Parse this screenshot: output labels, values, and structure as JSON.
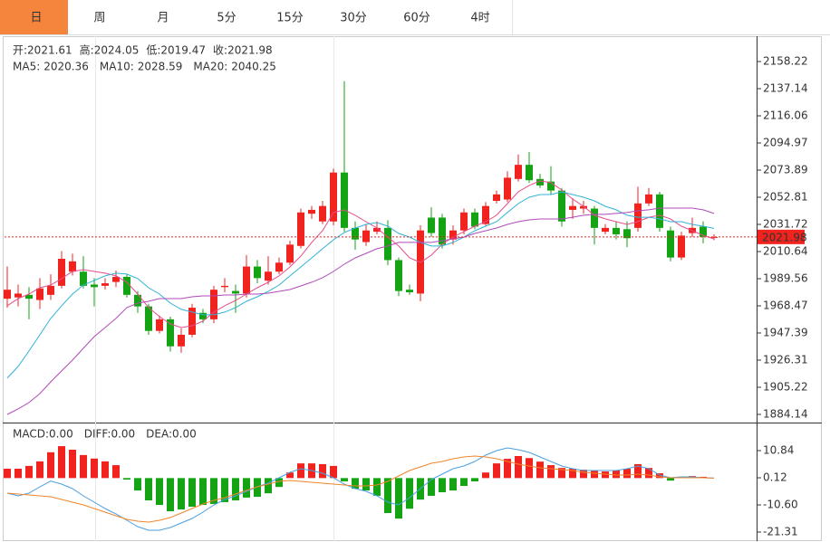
{
  "tabs": {
    "items": [
      "日",
      "周",
      "月",
      "5分",
      "15分",
      "30分",
      "60分",
      "4时"
    ],
    "active": 0
  },
  "chart_data": [
    {
      "type": "candlestick",
      "ohlc_legend": [
        {
          "label": "开:",
          "value": 2021.61
        },
        {
          "label": "高:",
          "value": 2024.05
        },
        {
          "label": "低:",
          "value": 2019.47
        },
        {
          "label": "收:",
          "value": 2021.98
        }
      ],
      "up_color": "#f0231f",
      "down_color": "#13a313",
      "open": [
        1974,
        1975,
        1977,
        1973,
        1977,
        1984,
        1995,
        1995,
        1985,
        1984,
        1987,
        1991,
        1977,
        1968,
        1949,
        1958,
        1937,
        1946,
        1963,
        1958,
        1983,
        1980,
        1978,
        1999,
        1988,
        1995,
        2002,
        2015,
        2040,
        2034,
        2034,
        2072,
        2029,
        2018,
        2026,
        2029,
        2004,
        1981,
        1978,
        2037,
        2037,
        2020,
        2027,
        2041,
        2032,
        2050,
        2051,
        2067,
        2078,
        2067,
        2065,
        2058,
        2043,
        2044,
        2044,
        2026,
        2029,
        2028,
        2029,
        2048,
        2055,
        2027,
        2006,
        2025,
        2030,
        2021.61
      ],
      "high": [
        1999,
        1985,
        1983,
        1990,
        1993,
        2011,
        2009,
        2007,
        1990,
        1990,
        1996,
        1993,
        1980,
        1970,
        1961,
        1960,
        1951,
        1970,
        1966,
        1984,
        1990,
        1985,
        2008,
        2004,
        2007,
        2006,
        2019,
        2044,
        2046,
        2050,
        2075,
        2143,
        2034,
        2032,
        2034,
        2035,
        2006,
        1985,
        2031,
        2045,
        2040,
        2031,
        2044,
        2044,
        2049,
        2058,
        2073,
        2086,
        2088,
        2071,
        2077,
        2060,
        2052,
        2050,
        2046,
        2032,
        2034,
        2034,
        2061,
        2060,
        2057,
        2030,
        2026,
        2037,
        2034,
        2024.05
      ],
      "low": [
        1967,
        1968,
        1958,
        1966,
        1973,
        1982,
        1992,
        1982,
        1968,
        1981,
        1983,
        1975,
        1963,
        1946,
        1947,
        1933,
        1932,
        1944,
        1955,
        1955,
        1979,
        1963,
        1975,
        1986,
        1985,
        1993,
        2000,
        2013,
        2036,
        2032,
        2031,
        2026,
        2012,
        2015,
        2024,
        2000,
        1976,
        1977,
        1972,
        2022,
        2013,
        2016,
        2024,
        2028,
        2030,
        2048,
        2049,
        2065,
        2064,
        2060,
        2055,
        2030,
        2036,
        2040,
        2016,
        2024,
        2020,
        2014,
        2026,
        2046,
        2026,
        2003,
        2004,
        2022,
        2017,
        2019.47
      ],
      "close": [
        1981,
        1978,
        1974,
        1982,
        1984,
        2005,
        2003,
        1984,
        1983,
        1986,
        1991,
        1977,
        1968,
        1949,
        1958,
        1937,
        1946,
        1967,
        1958,
        1981,
        1984,
        1978,
        1999,
        1990,
        1995,
        2002,
        2016,
        2041,
        2043,
        2046,
        2072,
        2029,
        2020,
        2027,
        2029,
        2004,
        1980,
        1979,
        2027,
        2025,
        2016,
        2027,
        2041,
        2030,
        2046,
        2055,
        2068,
        2078,
        2066,
        2062,
        2058,
        2034,
        2046,
        2046,
        2029,
        2029,
        2024,
        2021,
        2048,
        2055,
        2029,
        2006,
        2023,
        2029,
        2022,
        2021.98
      ],
      "series": [
        {
          "name": "MA5:",
          "current": 2020.36,
          "color": "#e64c8c",
          "values": [
            1968.5,
            1974.1,
            1977.6,
            1982.5,
            1984.6,
            1989.6,
            1995.2,
            1996.6,
            1995.2,
            1993.8,
            1991.7,
            1986.8,
            1977.6,
            1967.1,
            1960.1,
            1954.4,
            1951.6,
            1953.0,
            1956.5,
            1963.6,
            1968.5,
            1972.7,
            1977.6,
            1982.5,
            1986.8,
            1991.7,
            1998.7,
            2007.1,
            2017.7,
            2026.8,
            2040.9,
            2043.0,
            2038.8,
            2033.8,
            2028.9,
            2021.9,
            2014.9,
            2005.7,
            2002.2,
            2007.8,
            2016.3,
            2021.9,
            2026.1,
            2030.3,
            2033.8,
            2038.8,
            2047.9,
            2057.0,
            2062.0,
            2065.5,
            2064.1,
            2058.4,
            2051.4,
            2045.8,
            2038.8,
            2036.0,
            2033.8,
            2031.7,
            2033.8,
            2037.3,
            2038.8,
            2036.0,
            2030.3,
            2026.8,
            2023.3,
            2020.36
          ]
        },
        {
          "name": "MA10:",
          "current": 2028.59,
          "color": "#2fb3d6",
          "values": [
            1912.3,
            1921.4,
            1933.4,
            1946.0,
            1958.7,
            1968.5,
            1977.6,
            1984.6,
            1988.2,
            1991.7,
            1993.8,
            1993.1,
            1989.6,
            1982.5,
            1977.6,
            1970.6,
            1965.7,
            1963.6,
            1961.5,
            1961.5,
            1963.6,
            1967.1,
            1972.0,
            1975.5,
            1979.7,
            1984.6,
            1991.7,
            1998.7,
            2005.7,
            2012.8,
            2019.8,
            2025.4,
            2028.9,
            2031.7,
            2033.1,
            2030.3,
            2024.7,
            2021.9,
            2017.7,
            2014.9,
            2014.9,
            2017.7,
            2021.9,
            2026.8,
            2030.3,
            2033.8,
            2040.9,
            2047.9,
            2052.8,
            2054.9,
            2054.9,
            2057.0,
            2054.9,
            2052.8,
            2050.0,
            2045.8,
            2043.0,
            2038.8,
            2037.3,
            2037.3,
            2036.0,
            2033.8,
            2033.8,
            2031.7,
            2030.3,
            2028.59
          ]
        },
        {
          "name": "MA20:",
          "current": 2040.25,
          "color": "#b04ab8",
          "values": [
            1884.1,
            1888.4,
            1893.3,
            1900.3,
            1909.4,
            1917.9,
            1926.3,
            1935.5,
            1944.6,
            1951.6,
            1958.7,
            1967.1,
            1970.6,
            1972.0,
            1974.1,
            1974.1,
            1974.1,
            1975.5,
            1976.2,
            1976.2,
            1976.9,
            1976.9,
            1977.6,
            1977.6,
            1978.3,
            1979.7,
            1981.1,
            1983.9,
            1986.8,
            1990.3,
            1995.2,
            2000.8,
            2005.7,
            2009.2,
            2012.8,
            2014.9,
            2017.7,
            2017.7,
            2017.7,
            2017.7,
            2019.1,
            2020.5,
            2021.9,
            2024.7,
            2026.8,
            2028.9,
            2031.7,
            2033.8,
            2035.2,
            2035.9,
            2035.9,
            2035.9,
            2037.3,
            2038.8,
            2039.5,
            2039.5,
            2040.2,
            2040.9,
            2042.3,
            2043.0,
            2044.4,
            2044.4,
            2044.4,
            2044.4,
            2043.0,
            2040.25
          ]
        }
      ],
      "last_price": 2021.98,
      "last_price_color": "#f0231f",
      "ylim": [
        1877.8,
        2177.9
      ],
      "yticks": [
        1884.14,
        1905.22,
        1926.31,
        1947.39,
        1968.47,
        1989.56,
        2010.64,
        2031.72,
        2052.81,
        2073.89,
        2094.97,
        2116.06,
        2137.14,
        2158.22
      ]
    },
    {
      "type": "macd",
      "histogram": {
        "name": "MACD:",
        "current": {
          "value": 0,
          "label": "0.00"
        },
        "up_color": "#f0231f",
        "down_color": "#13a313",
        "values": [
          3.7,
          3.7,
          4.8,
          6.6,
          10.2,
          12.6,
          11.2,
          9.1,
          7.7,
          6.6,
          5.1,
          -0.6,
          -4.9,
          -8.8,
          -10.6,
          -13.1,
          -12.4,
          -11.3,
          -10.6,
          -10.2,
          -9.5,
          -8.8,
          -7.7,
          -7.4,
          -6.0,
          -3.5,
          2.2,
          5.8,
          5.8,
          5.5,
          4.8,
          -1.3,
          -4.2,
          -4.9,
          -7.0,
          -13.8,
          -16.0,
          -12.1,
          -8.5,
          -7.0,
          -5.6,
          -4.9,
          -3.1,
          -1.3,
          2.2,
          5.8,
          7.6,
          8.7,
          7.9,
          6.5,
          5.1,
          4.0,
          3.7,
          3.3,
          3.0,
          2.6,
          3.0,
          3.7,
          5.5,
          4.0,
          1.9,
          -1.0,
          0.5,
          0.8,
          0.5,
          0
        ]
      },
      "series": [
        {
          "name": "DIFF:",
          "current": {
            "value": 0,
            "label": "0.00"
          },
          "color": "#4a9fe0",
          "values": [
            -5.95,
            -7.03,
            -5.95,
            -3.45,
            -1.2,
            -2.38,
            -4.17,
            -7.03,
            -9.53,
            -12.03,
            -14.17,
            -16.67,
            -19.17,
            -20.6,
            -20.6,
            -19.53,
            -17.75,
            -15.96,
            -13.46,
            -10.6,
            -8.46,
            -7.03,
            -5.24,
            -3.45,
            -2.02,
            0.12,
            2.26,
            3.69,
            2.98,
            1.91,
            0.12,
            -2.38,
            -4.17,
            -5.24,
            -7.03,
            -9.53,
            -10.6,
            -7.74,
            -4.17,
            -0.59,
            1.55,
            3.69,
            4.76,
            6.55,
            9.05,
            10.84,
            11.91,
            11.2,
            10.12,
            8.34,
            6.55,
            4.76,
            3.69,
            2.98,
            2.98,
            2.98,
            2.98,
            3.69,
            4.76,
            3.69,
            1.19,
            0.12,
            0.48,
            0.48,
            0.12,
            0
          ]
        },
        {
          "name": "DEA:",
          "current": {
            "value": 0,
            "label": "0.00"
          },
          "color": "#f0852a",
          "values": [
            -5.95,
            -6.31,
            -6.67,
            -7.03,
            -7.38,
            -8.46,
            -9.53,
            -10.6,
            -12.03,
            -13.46,
            -14.89,
            -16.32,
            -17.03,
            -17.39,
            -16.67,
            -15.6,
            -13.81,
            -12.03,
            -10.24,
            -8.81,
            -7.74,
            -6.31,
            -4.88,
            -3.45,
            -2.38,
            -1.31,
            -0.95,
            -1.31,
            -1.67,
            -2.02,
            -2.38,
            -2.74,
            -3.09,
            -3.09,
            -2.74,
            -1.31,
            0.83,
            2.98,
            4.41,
            5.84,
            6.55,
            7.62,
            8.34,
            8.7,
            8.34,
            7.62,
            6.55,
            5.48,
            4.76,
            4.05,
            3.69,
            3.33,
            2.98,
            2.26,
            1.91,
            1.55,
            1.19,
            1.19,
            1.55,
            1.19,
            0.48,
            0.12,
            0.12,
            0.12,
            0.12,
            0
          ]
        }
      ],
      "ylim": [
        -24.88,
        21.56
      ],
      "yticks": [
        -21.31,
        {
          "value": -10.6,
          "label": "-10.60"
        },
        0.12,
        10.84
      ]
    }
  ]
}
